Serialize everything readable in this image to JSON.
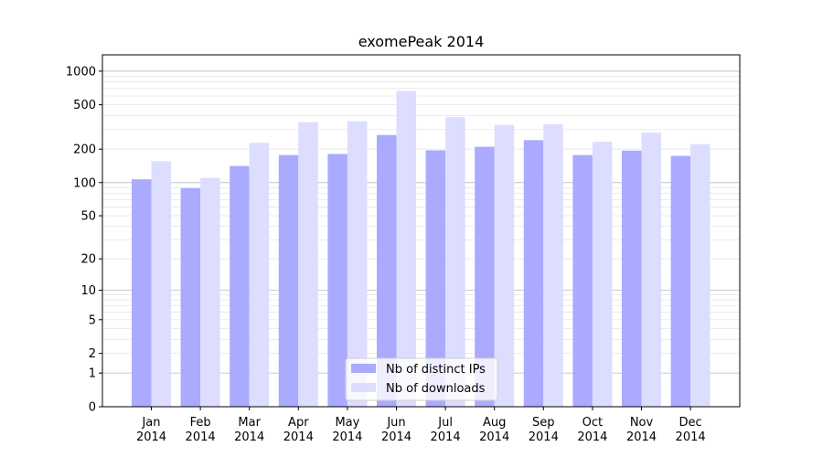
{
  "chart_data": {
    "type": "bar",
    "title": "exomePeak 2014",
    "xlabel": "",
    "ylabel": "",
    "y_scale": "log(1 + y)",
    "ylim": [
      0,
      1400
    ],
    "y_ticks": [
      0,
      1,
      2,
      5,
      10,
      20,
      50,
      100,
      200,
      500,
      1000
    ],
    "grid": "horizontal",
    "legend_position": "bottom-center",
    "categories": [
      "Jan\n2014",
      "Feb\n2014",
      "Mar\n2014",
      "Apr\n2014",
      "May\n2014",
      "Jun\n2014",
      "Jul\n2014",
      "Aug\n2014",
      "Sep\n2014",
      "Oct\n2014",
      "Nov\n2014",
      "Dec\n2014"
    ],
    "series": [
      {
        "name": "Nb of distinct IPs",
        "color": "#aaaaff",
        "values": [
          107,
          89,
          141,
          177,
          181,
          268,
          195,
          210,
          241,
          177,
          194,
          174
        ]
      },
      {
        "name": "Nb of downloads",
        "color": "#ddddff",
        "values": [
          156,
          110,
          228,
          349,
          356,
          666,
          387,
          330,
          335,
          233,
          281,
          222
        ]
      }
    ]
  }
}
